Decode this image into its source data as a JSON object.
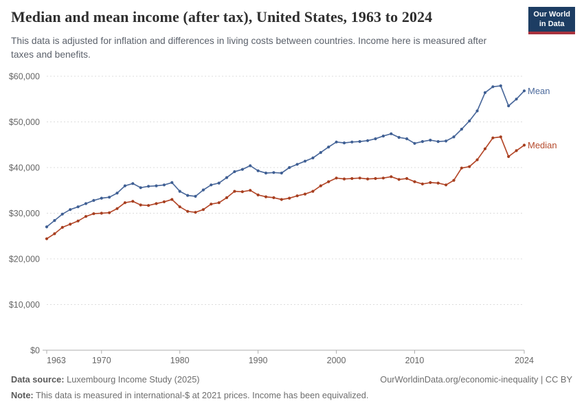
{
  "header": {
    "title": "Median and mean income (after tax), United States, 1963 to 2024",
    "subtitle": "This data is adjusted for inflation and differences in living costs between countries. Income here is measured after taxes and benefits.",
    "logo": {
      "line1": "Our World",
      "line2": "in Data",
      "bg_color": "#1d3d63",
      "accent_color": "#a8323e"
    }
  },
  "chart_data": {
    "type": "line",
    "title": "Median and mean income (after tax), United States, 1963 to 2024",
    "xlabel": "",
    "ylabel": "",
    "ylim": [
      0,
      60000
    ],
    "yticks": [
      0,
      10000,
      20000,
      30000,
      40000,
      50000,
      60000
    ],
    "ytick_labels": [
      "$0",
      "$10,000",
      "$20,000",
      "$30,000",
      "$40,000",
      "$50,000",
      "$60,000"
    ],
    "xticks": [
      1963,
      1970,
      1980,
      1990,
      2000,
      2010,
      2024
    ],
    "grid": "horizontal-dashed",
    "legend_position": "end-of-line",
    "x": [
      1963,
      1964,
      1965,
      1966,
      1967,
      1968,
      1969,
      1970,
      1971,
      1972,
      1973,
      1974,
      1975,
      1976,
      1977,
      1978,
      1979,
      1980,
      1981,
      1982,
      1983,
      1984,
      1985,
      1986,
      1987,
      1988,
      1989,
      1990,
      1991,
      1992,
      1993,
      1994,
      1995,
      1996,
      1997,
      1998,
      1999,
      2000,
      2001,
      2002,
      2003,
      2004,
      2005,
      2006,
      2007,
      2008,
      2009,
      2010,
      2011,
      2012,
      2013,
      2014,
      2015,
      2016,
      2017,
      2018,
      2019,
      2020,
      2021,
      2022,
      2023,
      2024
    ],
    "series": [
      {
        "name": "Mean",
        "color": "#4c6a9c",
        "marker_color": "#3f5f93",
        "values": [
          27000,
          28400,
          29800,
          30800,
          31400,
          32100,
          32800,
          33300,
          33500,
          34400,
          36000,
          36500,
          35600,
          35900,
          36000,
          36200,
          36700,
          34800,
          33900,
          33700,
          35100,
          36200,
          36600,
          37800,
          39100,
          39600,
          40400,
          39300,
          38800,
          38900,
          38800,
          40000,
          40700,
          41400,
          42100,
          43300,
          44500,
          45600,
          45400,
          45600,
          45700,
          45900,
          46300,
          46900,
          47400,
          46600,
          46300,
          45300,
          45700,
          46000,
          45700,
          45800,
          46700,
          48400,
          50200,
          52400,
          56400,
          57700,
          57900,
          53500,
          55000,
          56800
        ]
      },
      {
        "name": "Median",
        "color": "#b5492b",
        "marker_color": "#a63f20",
        "values": [
          24400,
          25500,
          26900,
          27600,
          28300,
          29300,
          29900,
          30000,
          30100,
          31000,
          32300,
          32600,
          31800,
          31700,
          32100,
          32500,
          33000,
          31400,
          30400,
          30200,
          30800,
          32000,
          32300,
          33400,
          34800,
          34700,
          35000,
          34000,
          33600,
          33400,
          33000,
          33300,
          33800,
          34200,
          34800,
          36000,
          36900,
          37700,
          37500,
          37600,
          37700,
          37500,
          37600,
          37700,
          38000,
          37400,
          37600,
          36900,
          36400,
          36700,
          36600,
          36200,
          37200,
          39900,
          40200,
          41700,
          44100,
          46500,
          46700,
          42400,
          43700,
          44900
        ]
      }
    ]
  },
  "footer": {
    "data_source_label": "Data source:",
    "data_source": " Luxembourg Income Study (2025)",
    "rights": "OurWorldinData.org/economic-inequality | CC BY",
    "note_label": "Note:",
    "note": " This data is measured in international-$ at 2021 prices. Income has been equivalized."
  }
}
